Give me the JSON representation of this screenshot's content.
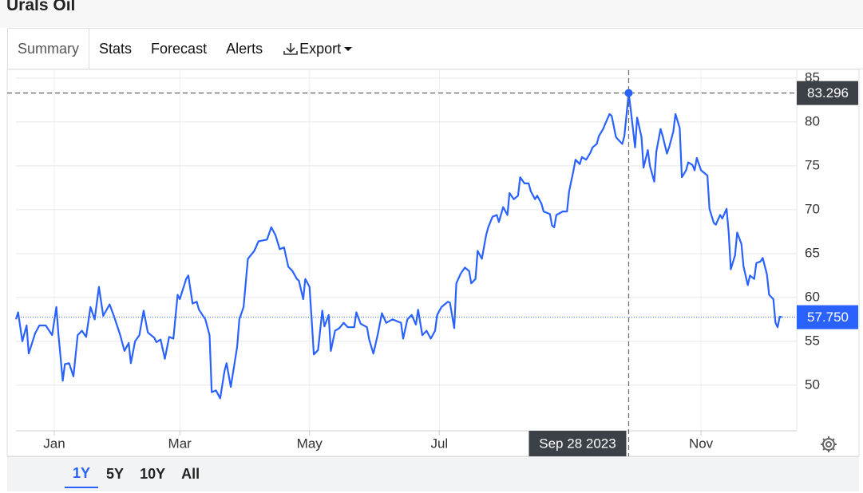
{
  "header": {
    "title": "Urals Oil"
  },
  "tabs": [
    "Summary",
    "Stats",
    "Forecast",
    "Alerts",
    "Export"
  ],
  "range_buttons": [
    "1Y",
    "5Y",
    "10Y",
    "All"
  ],
  "chart_data": {
    "type": "line",
    "color": "#2962ff",
    "x": [
      "2022-12-14",
      "2022-12-15",
      "2022-12-17",
      "2022-12-19",
      "2022-12-20",
      "2022-12-23",
      "2022-12-25",
      "2022-12-28",
      "2022-12-31",
      "2023-01-02",
      "2023-01-03",
      "2023-01-05",
      "2023-01-06",
      "2023-01-08",
      "2023-01-10",
      "2023-01-12",
      "2023-01-14",
      "2023-01-16",
      "2023-01-18",
      "2023-01-20",
      "2023-01-22",
      "2023-01-24",
      "2023-01-27",
      "2023-01-29",
      "2023-02-01",
      "2023-02-03",
      "2023-02-05",
      "2023-02-06",
      "2023-02-08",
      "2023-02-10",
      "2023-02-12",
      "2023-02-14",
      "2023-02-17",
      "2023-02-18",
      "2023-02-20",
      "2023-02-22",
      "2023-02-24",
      "2023-02-26",
      "2023-02-28",
      "2023-03-01",
      "2023-03-04",
      "2023-03-05",
      "2023-03-07",
      "2023-03-09",
      "2023-03-10",
      "2023-03-13",
      "2023-03-15",
      "2023-03-16",
      "2023-03-18",
      "2023-03-20",
      "2023-03-22",
      "2023-03-23",
      "2023-03-25",
      "2023-03-28",
      "2023-03-29",
      "2023-03-31",
      "2023-04-02",
      "2023-04-05",
      "2023-04-07",
      "2023-04-09",
      "2023-04-11",
      "2023-04-13",
      "2023-04-15",
      "2023-04-17",
      "2023-04-19",
      "2023-04-21",
      "2023-04-23",
      "2023-04-25",
      "2023-04-26",
      "2023-04-28",
      "2023-04-29",
      "2023-05-01",
      "2023-05-02",
      "2023-05-03",
      "2023-05-05",
      "2023-05-07",
      "2023-05-08",
      "2023-05-10",
      "2023-05-11",
      "2023-05-13",
      "2023-05-15",
      "2023-05-17",
      "2023-05-19",
      "2023-05-22",
      "2023-05-23",
      "2023-05-25",
      "2023-05-28",
      "2023-05-29",
      "2023-05-31",
      "2023-06-02",
      "2023-06-04",
      "2023-06-06",
      "2023-06-09",
      "2023-06-11",
      "2023-06-13",
      "2023-06-14",
      "2023-06-16",
      "2023-06-18",
      "2023-06-20",
      "2023-06-21",
      "2023-06-23",
      "2023-06-25",
      "2023-06-27",
      "2023-06-29",
      "2023-06-30",
      "2023-07-02",
      "2023-07-05",
      "2023-07-06",
      "2023-07-08",
      "2023-07-09",
      "2023-07-11",
      "2023-07-13",
      "2023-07-15",
      "2023-07-16",
      "2023-07-18",
      "2023-07-19",
      "2023-07-21",
      "2023-07-23",
      "2023-07-24",
      "2023-07-26",
      "2023-07-28",
      "2023-07-29",
      "2023-07-31",
      "2023-08-02",
      "2023-08-03",
      "2023-08-05",
      "2023-08-07",
      "2023-08-08",
      "2023-08-10",
      "2023-08-12",
      "2023-08-13",
      "2023-08-15",
      "2023-08-16",
      "2023-08-18",
      "2023-08-19",
      "2023-08-22",
      "2023-08-23",
      "2023-08-24",
      "2023-08-25",
      "2023-08-28",
      "2023-08-30",
      "2023-08-31",
      "2023-09-02",
      "2023-09-03",
      "2023-09-05",
      "2023-09-06",
      "2023-09-08",
      "2023-09-10",
      "2023-09-11",
      "2023-09-13",
      "2023-09-14",
      "2023-09-16",
      "2023-09-17",
      "2023-09-19",
      "2023-09-20",
      "2023-09-22",
      "2023-09-23",
      "2023-09-25",
      "2023-09-26",
      "2023-09-28",
      "2023-09-29",
      "2023-10-01",
      "2023-10-02",
      "2023-10-04",
      "2023-10-05",
      "2023-10-07",
      "2023-10-08",
      "2023-10-10",
      "2023-10-11",
      "2023-10-13",
      "2023-10-14",
      "2023-10-16",
      "2023-10-17",
      "2023-10-19",
      "2023-10-20",
      "2023-10-22",
      "2023-10-23",
      "2023-10-25",
      "2023-10-26",
      "2023-10-28",
      "2023-10-29",
      "2023-10-30",
      "2023-11-01",
      "2023-11-02",
      "2023-11-04",
      "2023-11-05",
      "2023-11-07",
      "2023-11-08",
      "2023-11-10",
      "2023-11-11",
      "2023-11-13",
      "2023-11-14",
      "2023-11-15",
      "2023-11-17",
      "2023-11-18",
      "2023-11-20",
      "2023-11-21",
      "2023-11-23",
      "2023-11-24",
      "2023-11-26",
      "2023-11-27",
      "2023-11-29",
      "2023-11-30",
      "2023-12-02",
      "2023-12-03",
      "2023-12-05",
      "2023-12-06",
      "2023-12-07",
      "2023-12-08",
      "2023-12-09"
    ],
    "values": [
      57.5,
      58.3,
      55.0,
      56.8,
      53.6,
      55.9,
      56.8,
      56.8,
      55.7,
      58.9,
      55.7,
      50.5,
      52.4,
      52.5,
      51.0,
      55.7,
      56.2,
      55.5,
      58.9,
      57.5,
      61.2,
      57.9,
      59.2,
      57.9,
      55.7,
      53.9,
      54.8,
      52.5,
      55.0,
      55.7,
      58.5,
      56.0,
      55.4,
      54.9,
      55.2,
      53.0,
      55.5,
      55.3,
      60.3,
      59.8,
      62.1,
      62.5,
      59.3,
      59.5,
      58.6,
      57.5,
      55.7,
      49.2,
      49.4,
      48.5,
      51.6,
      52.5,
      49.8,
      54.4,
      57.5,
      58.9,
      64.4,
      65.3,
      66.4,
      66.5,
      66.6,
      68.0,
      67.1,
      65.5,
      65.7,
      63.5,
      63.0,
      62.1,
      61.9,
      59.8,
      62.1,
      61.2,
      57.5,
      53.5,
      54.0,
      58.5,
      56.7,
      58.0,
      53.9,
      56.2,
      56.5,
      57.1,
      56.6,
      56.6,
      58.3,
      57.0,
      56.6,
      55.2,
      53.6,
      55.7,
      58.2,
      57.1,
      57.5,
      57.3,
      57.1,
      55.3,
      57.5,
      58.0,
      56.9,
      58.6,
      55.7,
      56.2,
      55.3,
      56.2,
      58.0,
      58.9,
      59.5,
      59.4,
      56.5,
      61.6,
      62.7,
      63.4,
      63.0,
      61.6,
      62.1,
      65.3,
      64.4,
      67.1,
      68.0,
      69.2,
      69.4,
      68.6,
      70.3,
      69.4,
      71.9,
      71.2,
      71.6,
      73.7,
      73.0,
      73.0,
      72.1,
      71.2,
      71.6,
      70.7,
      69.8,
      69.5,
      68.2,
      68.0,
      69.4,
      69.8,
      69.8,
      72.1,
      74.4,
      75.7,
      75.2,
      76.0,
      75.7,
      76.5,
      77.1,
      77.5,
      78.4,
      79.2,
      79.8,
      80.9,
      80.7,
      78.3,
      78.0,
      77.5,
      78.4,
      83.296,
      81.4,
      77.1,
      80.5,
      78.3,
      74.8,
      76.8,
      75.0,
      73.2,
      76.6,
      79.2,
      78.4,
      76.4,
      77.1,
      78.9,
      80.9,
      79.3,
      73.7,
      74.5,
      75.4,
      75.1,
      74.5,
      75.9,
      74.5,
      74.3,
      73.9,
      70.1,
      68.5,
      68.3,
      69.4,
      69.0,
      70.1,
      67.5,
      63.2,
      64.8,
      67.4,
      66.1,
      63.5,
      61.4,
      62.5,
      62.1,
      63.9,
      64.1,
      64.5,
      62.6,
      60.3,
      59.8,
      57.1,
      56.6,
      57.8,
      57.75
    ],
    "xlim": [
      "2022-12-14",
      "2023-12-16"
    ],
    "xticks": [
      {
        "value": "2023-01-01",
        "label": "Jan"
      },
      {
        "value": "2023-03-01",
        "label": "Mar"
      },
      {
        "value": "2023-05-01",
        "label": "May"
      },
      {
        "value": "2023-07-01",
        "label": "Jul"
      },
      {
        "value": "2023-11-01",
        "label": "Nov"
      }
    ],
    "ylim": [
      44.8,
      85.9
    ],
    "yticks": [
      50,
      55,
      60,
      65,
      70,
      75,
      80,
      85
    ],
    "grid": true,
    "crosshair": {
      "x": "2023-09-28",
      "x_label": "Sep 28 2023",
      "y": 83.296
    },
    "last_value": {
      "value": 57.75,
      "label": "57.750"
    }
  }
}
